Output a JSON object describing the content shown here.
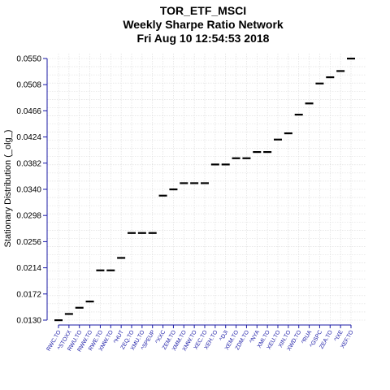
{
  "chart_data": {
    "type": "scatter",
    "title_lines": [
      "TOR_ETF_MSCI",
      "Weekly  Sharpe Ratio Network",
      "Fri Aug 10 12:54:53 2018"
    ],
    "ylabel": "Stationary Distribution (_olg_)",
    "xlabel": "",
    "ylim": [
      0.013,
      0.055
    ],
    "yticks": [
      "0.0550",
      "0.0508",
      "0.0466",
      "0.0424",
      "0.0382",
      "0.0340",
      "0.0298",
      "0.0256",
      "0.0214",
      "0.0172",
      "0.0130"
    ],
    "grid": true,
    "categories": [
      "RWC.TO",
      "^STOXX",
      "RWU.TO",
      "RWW.TO",
      "RWE.TO",
      "XMW.TO",
      "^HUT",
      "ZEQ.TO",
      "XMU.TO",
      "^SPEUP",
      "^XXC",
      "ZEM.TO",
      "XMM.TO",
      "XMW.TO",
      "XEC.TO",
      "XEH.TO",
      "^DJI",
      "XEM.TO",
      "ZDM.TO",
      "^NYA",
      "XMI.TO",
      "XEU.TO",
      "XIN.TO",
      "XWD.TO",
      "^RUA",
      "^GSPC",
      "ZEA.TO",
      "^IXE",
      "XEF.TO"
    ],
    "values": [
      0.013,
      0.014,
      0.015,
      0.016,
      0.021,
      0.021,
      0.023,
      0.027,
      0.027,
      0.027,
      0.033,
      0.034,
      0.035,
      0.035,
      0.035,
      0.038,
      0.038,
      0.039,
      0.039,
      0.04,
      0.04,
      0.042,
      0.043,
      0.046,
      0.0478,
      0.051,
      0.052,
      0.053,
      0.055
    ],
    "marker_color": "#000000",
    "axis_color": "#1a1aa6"
  }
}
